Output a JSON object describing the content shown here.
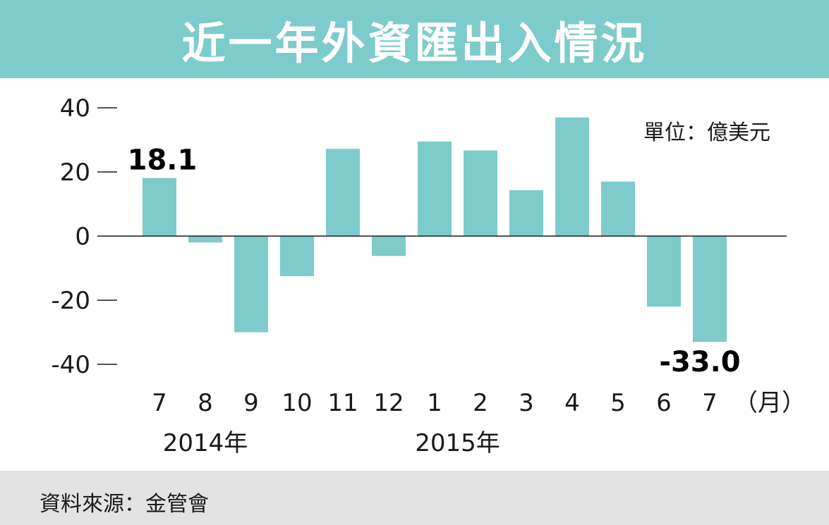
{
  "title": "近一年外資匯出入情況",
  "source": "資料來源：金管會",
  "colors": {
    "bar": "#7ecbcc",
    "title_bg": "#7ecbcc",
    "footer_bg": "#e3e3e3"
  },
  "chart_data": {
    "type": "bar",
    "unit_label": "單位：億美元",
    "categories": [
      "7",
      "8",
      "9",
      "10",
      "11",
      "12",
      "1",
      "2",
      "3",
      "4",
      "5",
      "6",
      "7"
    ],
    "x_suffix": "（月）",
    "year_labels": [
      {
        "text": "2014年",
        "category_index": 1
      },
      {
        "text": "2015年",
        "category_index": 6.5
      }
    ],
    "values": [
      18.1,
      -2.0,
      -30.0,
      -12.5,
      27.2,
      -6.2,
      29.5,
      26.7,
      14.3,
      37.0,
      17.0,
      -22.0,
      -33.0
    ],
    "data_labels": [
      {
        "index": 0,
        "text": "18.1"
      },
      {
        "index": 12,
        "text": "-33.0"
      }
    ],
    "yticks": [
      40,
      20,
      0,
      -20,
      -40
    ],
    "ylim": [
      -40,
      40
    ],
    "grid": false
  }
}
